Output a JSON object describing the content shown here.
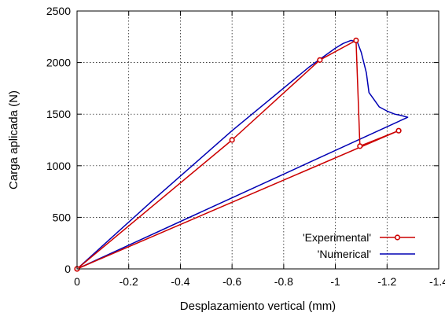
{
  "chart_data": {
    "type": "line",
    "xlabel": "Desplazamiento vertical (mm)",
    "ylabel": "Carga aplicada (N)",
    "xlim": [
      0,
      -1.4
    ],
    "ylim": [
      0,
      2500
    ],
    "xticks": [
      0,
      -0.2,
      -0.4,
      -0.6,
      -0.8,
      -1,
      -1.2,
      -1.4
    ],
    "xtick_labels": [
      "0",
      "-0.2",
      "-0.4",
      "-0.6",
      "-0.8",
      "-1",
      "-1.2",
      "-1.4"
    ],
    "yticks": [
      0,
      500,
      1000,
      1500,
      2000,
      2500
    ],
    "ytick_labels": [
      "0",
      "500",
      "1000",
      "1500",
      "2000",
      "2500"
    ],
    "grid": true,
    "legend_position": "bottom-right",
    "series": [
      {
        "name": "'Experimental'",
        "color": "#cc0000",
        "marker": "circle",
        "x": [
          0,
          -0.6,
          -0.94,
          -1.08,
          -1.095,
          -1.245,
          0
        ],
        "y": [
          0,
          1250,
          2025,
          2215,
          1190,
          1340,
          0
        ]
      },
      {
        "name": "'Numerical'",
        "color": "#0000b4",
        "marker": "none",
        "x": [
          0,
          -0.3,
          -0.6,
          -0.9,
          -1.0,
          -1.03,
          -1.06,
          -1.085,
          -1.1,
          -1.12,
          -1.13,
          -1.15,
          -1.17,
          -1.2,
          -1.23,
          -1.25,
          -1.28,
          0
        ],
        "y": [
          0,
          680,
          1340,
          1960,
          2140,
          2185,
          2215,
          2200,
          2100,
          1900,
          1710,
          1640,
          1570,
          1530,
          1500,
          1490,
          1470,
          0
        ]
      }
    ]
  }
}
